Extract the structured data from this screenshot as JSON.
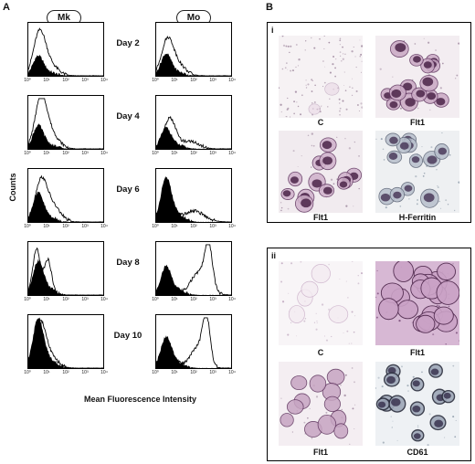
{
  "panel_a": {
    "letter": "A",
    "col_headers": [
      "Mk",
      "Mo"
    ],
    "y_label": "Counts",
    "x_label": "Mean Fluorescence Intensity",
    "tick_labels": [
      "10⁰",
      "10¹",
      "10²",
      "10³",
      "10⁴"
    ],
    "rows": [
      {
        "day": "Day 2"
      },
      {
        "day": "Day 4"
      },
      {
        "day": "Day 6"
      },
      {
        "day": "Day 8"
      },
      {
        "day": "Day 10"
      }
    ]
  },
  "panel_b": {
    "letter": "B",
    "sub_i": {
      "label": "i",
      "captions": [
        "C",
        "Flt1",
        "Flt1",
        "H-Ferritin"
      ]
    },
    "sub_ii": {
      "label": "ii",
      "captions": [
        "C",
        "Flt1",
        "Flt1",
        "CD61"
      ]
    }
  },
  "colors": {
    "stain": "#8a4f8a",
    "stain_dark": "#3b1f3f",
    "fill": "#000000"
  }
}
